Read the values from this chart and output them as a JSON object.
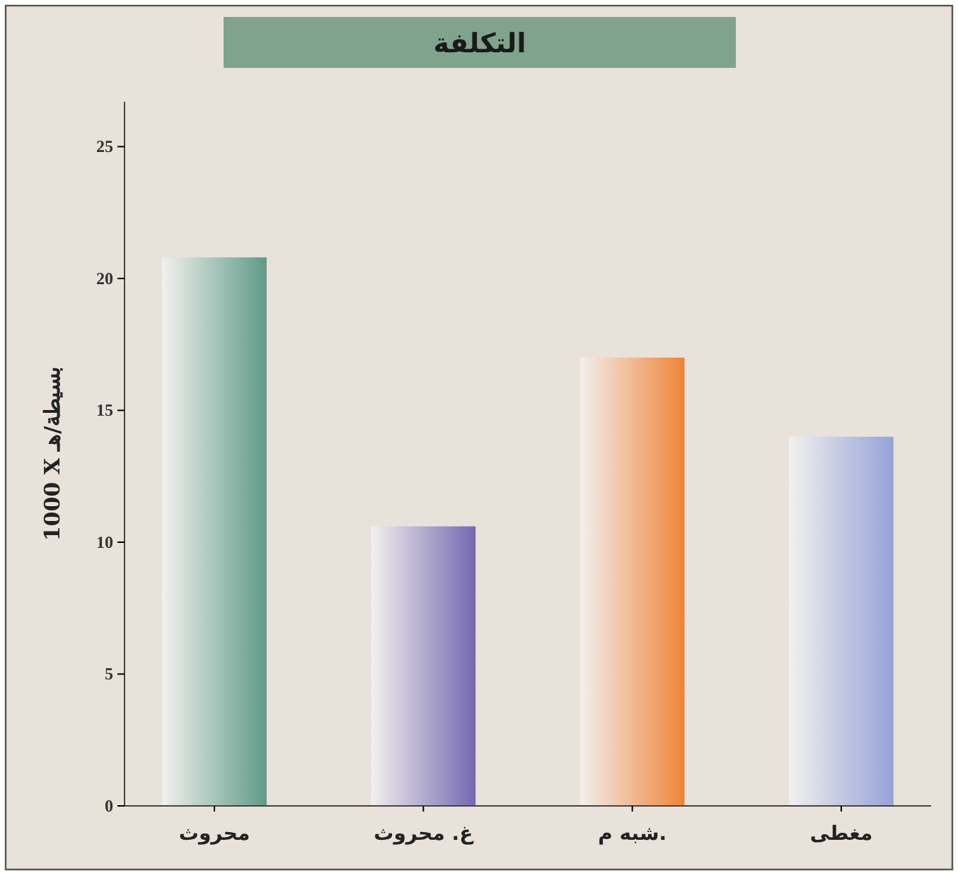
{
  "chart_data": {
    "type": "bar",
    "title": "التكلفة",
    "ylabel": "1000 X بسيطة/هـ",
    "categories": [
      "محروث",
      "غ. محروث",
      "شبه م.",
      "مغطى"
    ],
    "values": [
      20.8,
      10.6,
      17,
      14
    ],
    "colors": [
      "#5e9a88",
      "#7468b0",
      "#ee8436",
      "#95a3d8"
    ],
    "ylim": [
      0,
      26.7
    ],
    "yticks": [
      0,
      5,
      10,
      15,
      20,
      25
    ],
    "grid": false
  }
}
